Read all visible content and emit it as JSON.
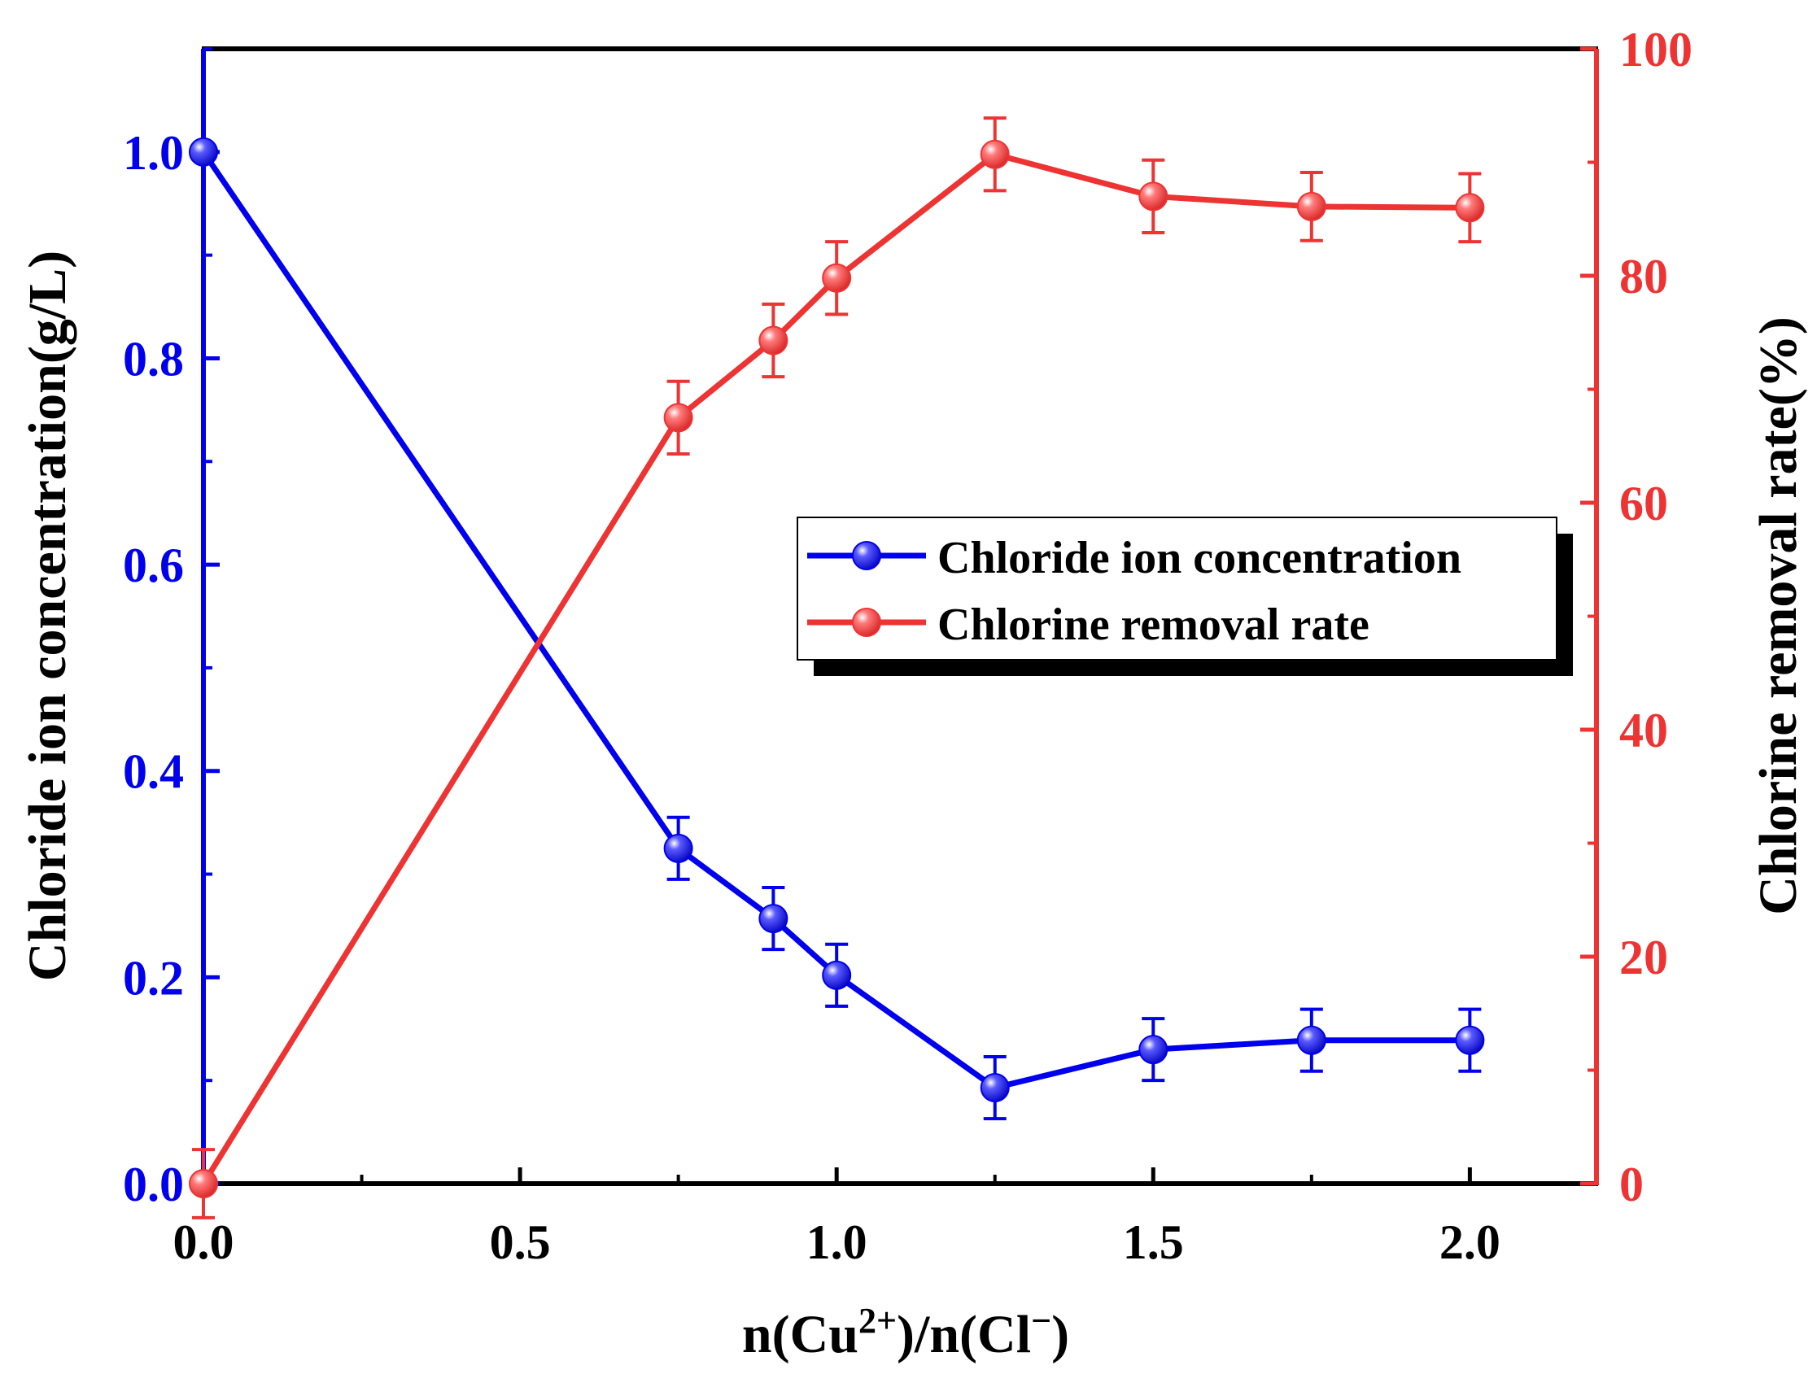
{
  "chart_data": {
    "type": "line",
    "x": [
      0.0,
      0.75,
      0.9,
      1.0,
      1.25,
      1.5,
      1.75,
      2.0
    ],
    "xlim": [
      0,
      2.2
    ],
    "xticks": [
      0.0,
      0.5,
      1.0,
      1.5,
      2.0
    ],
    "xtick_labels": [
      "0.0",
      "0.5",
      "1.0",
      "1.5",
      "2.0"
    ],
    "xlabel_parts": {
      "a": "n(Cu",
      "a_sup": "2+",
      "b": ")/n(Cl",
      "b_sup": "−",
      "c": ")"
    },
    "xlabel": "n(Cu2+)/n(Cl−)",
    "y_left": {
      "label": "Chloride ion concentration(g/L)",
      "lim": [
        0,
        1.1
      ],
      "ticks": [
        0.0,
        0.2,
        0.4,
        0.6,
        0.8,
        1.0
      ],
      "tick_labels": [
        "0.0",
        "0.2",
        "0.4",
        "0.6",
        "0.8",
        "1.0"
      ],
      "color": "#0000ee"
    },
    "y_right": {
      "label": "Chlorine removal rate(%)",
      "lim": [
        0,
        100
      ],
      "ticks": [
        0,
        20,
        40,
        60,
        80,
        100
      ],
      "tick_labels": [
        "0",
        "20",
        "40",
        "60",
        "80",
        "100"
      ],
      "color": "#ee3333"
    },
    "series": [
      {
        "name": "Chloride ion concentration",
        "axis": "left",
        "color": "#0000ee",
        "values": [
          1.0,
          0.325,
          0.257,
          0.202,
          0.093,
          0.13,
          0.139,
          0.139
        ],
        "errors": [
          0.0,
          0.03,
          0.03,
          0.03,
          0.03,
          0.03,
          0.03,
          0.03
        ]
      },
      {
        "name": "Chlorine removal rate",
        "axis": "right",
        "color": "#ee3333",
        "values": [
          0.0,
          67.5,
          74.3,
          79.8,
          90.7,
          87.0,
          86.1,
          86.0
        ],
        "errors": [
          3.0,
          3.2,
          3.2,
          3.2,
          3.2,
          3.2,
          3.0,
          3.0
        ]
      }
    ],
    "legend": {
      "position": "center-right"
    }
  }
}
